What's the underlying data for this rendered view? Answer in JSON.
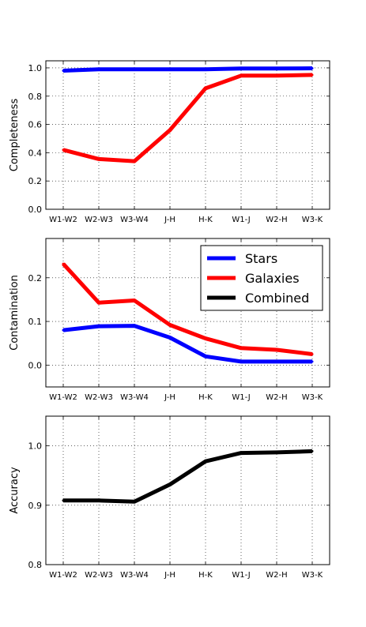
{
  "chart_data": [
    {
      "type": "line",
      "ylabel": "Completeness",
      "categories": [
        "W1-W2",
        "W2-W3",
        "W3-W4",
        "J-H",
        "H-K",
        "W1-J",
        "W2-H",
        "W3-K"
      ],
      "ylim": [
        0.0,
        1.05
      ],
      "yticks": [
        "0.0",
        "0.2",
        "0.4",
        "0.6",
        "0.8",
        "1.0"
      ],
      "ytick_values": [
        0.0,
        0.2,
        0.4,
        0.6,
        0.8,
        1.0
      ],
      "grid": true,
      "series": [
        {
          "key": "stars",
          "color": "#0000ff",
          "values": [
            0.98,
            0.99,
            0.99,
            0.99,
            0.99,
            0.995,
            0.995,
            0.997
          ]
        },
        {
          "key": "galaxies",
          "color": "#ff0000",
          "values": [
            0.42,
            0.355,
            0.34,
            0.56,
            0.855,
            0.945,
            0.945,
            0.95
          ]
        }
      ]
    },
    {
      "type": "line",
      "ylabel": "Contamination",
      "categories": [
        "W1-W2",
        "W2-W3",
        "W3-W4",
        "J-H",
        "H-K",
        "W1-J",
        "W2-H",
        "W3-K"
      ],
      "ylim": [
        -0.05,
        0.29
      ],
      "yticks": [
        "0.0",
        "0.1",
        "0.2"
      ],
      "ytick_values": [
        0.0,
        0.1,
        0.2
      ],
      "grid": true,
      "legend": {
        "placement": "top-right",
        "entries": [
          {
            "label": "Stars",
            "color": "#0000ff"
          },
          {
            "label": "Galaxies",
            "color": "#ff0000"
          },
          {
            "label": "Combined",
            "color": "#000000"
          }
        ]
      },
      "series": [
        {
          "key": "stars",
          "name": "Stars",
          "color": "#0000ff",
          "values": [
            0.08,
            0.089,
            0.09,
            0.063,
            0.02,
            0.008,
            0.008,
            0.008
          ]
        },
        {
          "key": "galaxies",
          "name": "Galaxies",
          "color": "#ff0000",
          "values": [
            0.232,
            0.143,
            0.148,
            0.092,
            0.061,
            0.039,
            0.035,
            0.025
          ]
        }
      ]
    },
    {
      "type": "line",
      "ylabel": "Accuracy",
      "categories": [
        "W1-W2",
        "W2-W3",
        "W3-W4",
        "J-H",
        "H-K",
        "W1-J",
        "W2-H",
        "W3-K"
      ],
      "ylim": [
        0.8,
        1.05
      ],
      "yticks": [
        "0.8",
        "0.9",
        "1.0"
      ],
      "ytick_values": [
        0.8,
        0.9,
        1.0
      ],
      "grid": true,
      "series": [
        {
          "key": "combined",
          "name": "Combined",
          "color": "#000000",
          "values": [
            0.908,
            0.908,
            0.906,
            0.935,
            0.974,
            0.988,
            0.989,
            0.991
          ]
        }
      ]
    }
  ]
}
